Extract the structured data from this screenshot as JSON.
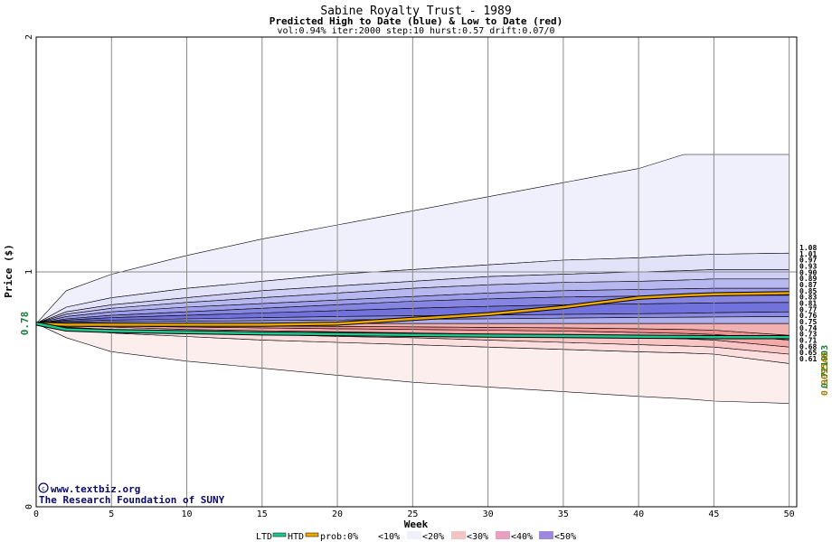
{
  "chart_data": {
    "type": "area",
    "title": "Sabine Royalty Trust - 1989",
    "subtitle": "Predicted High to Date (blue) &  Low to Date (red)",
    "params": "vol:0.94% iter:2000 step:10 hurst:0.57 drift:0.07/0",
    "xlabel": "Week",
    "ylabel": "Price ($)",
    "xlim": [
      0,
      50.5
    ],
    "ylim": [
      0,
      2
    ],
    "x_ticks": [
      "0",
      "5",
      "10",
      "15",
      "20",
      "25",
      "30",
      "35",
      "40",
      "45",
      "50"
    ],
    "y_ticks": [
      "0",
      "1",
      "2"
    ],
    "start_price_label": "0.78",
    "right_side_vertical_values": [
      "0.721903",
      "0.909548"
    ],
    "right_labels": [
      "1.08",
      "1.01",
      "0.97",
      "0.93",
      "0.90",
      "0.89",
      "0.87",
      "0.85",
      "0.83",
      "0.81",
      "0.77",
      "0.76",
      "0.75",
      "0.74",
      "0.73",
      "0.71",
      "0.68",
      "0.65",
      "0.61"
    ],
    "x": [
      0,
      2,
      5,
      10,
      15,
      20,
      25,
      30,
      35,
      40,
      43,
      45,
      50
    ],
    "high_bands": [
      {
        "values": [
          0.78,
          0.92,
          0.99,
          1.07,
          1.14,
          1.2,
          1.26,
          1.32,
          1.38,
          1.44,
          1.5,
          1.5,
          1.5
        ],
        "fill": "#f0f0fc"
      },
      {
        "values": [
          0.78,
          0.85,
          0.89,
          0.93,
          0.96,
          0.99,
          1.01,
          1.03,
          1.05,
          1.06,
          1.07,
          1.075,
          1.08
        ],
        "fill": "#e2e2f8"
      },
      {
        "values": [
          0.78,
          0.83,
          0.86,
          0.89,
          0.92,
          0.94,
          0.96,
          0.98,
          0.99,
          1.0,
          1.005,
          1.01,
          1.01
        ],
        "fill": "#cfcff5"
      },
      {
        "values": [
          0.78,
          0.82,
          0.845,
          0.87,
          0.89,
          0.91,
          0.93,
          0.945,
          0.955,
          0.96,
          0.965,
          0.97,
          0.97
        ],
        "fill": "#b8b8f0"
      },
      {
        "values": [
          0.78,
          0.81,
          0.83,
          0.85,
          0.865,
          0.88,
          0.895,
          0.91,
          0.92,
          0.925,
          0.928,
          0.93,
          0.93
        ],
        "fill": "#9e9eea"
      },
      {
        "values": [
          0.78,
          0.8,
          0.815,
          0.83,
          0.845,
          0.86,
          0.875,
          0.885,
          0.893,
          0.897,
          0.899,
          0.9,
          0.9
        ],
        "fill": "#8686e2"
      },
      {
        "values": [
          0.78,
          0.795,
          0.805,
          0.815,
          0.825,
          0.835,
          0.845,
          0.853,
          0.86,
          0.864,
          0.866,
          0.868,
          0.87
        ],
        "fill": "#7272dc"
      },
      {
        "values": [
          0.78,
          0.79,
          0.795,
          0.8,
          0.805,
          0.81,
          0.813,
          0.816,
          0.819,
          0.822,
          0.824,
          0.826,
          0.83
        ],
        "fill": "#8a8ae2"
      },
      {
        "values": [
          0.78,
          0.785,
          0.788,
          0.79,
          0.792,
          0.795,
          0.798,
          0.8,
          0.803,
          0.806,
          0.807,
          0.808,
          0.81
        ],
        "fill": "#b0b0ee"
      }
    ],
    "low_bands": [
      {
        "values": [
          0.78,
          0.72,
          0.66,
          0.62,
          0.59,
          0.56,
          0.53,
          0.51,
          0.49,
          0.47,
          0.46,
          0.45,
          0.44
        ],
        "fill": "#fdeeee"
      },
      {
        "values": [
          0.78,
          0.755,
          0.74,
          0.725,
          0.71,
          0.7,
          0.69,
          0.68,
          0.67,
          0.66,
          0.655,
          0.65,
          0.61
        ],
        "fill": "#fcdede"
      },
      {
        "values": [
          0.78,
          0.765,
          0.755,
          0.745,
          0.735,
          0.725,
          0.72,
          0.71,
          0.7,
          0.69,
          0.685,
          0.68,
          0.65
        ],
        "fill": "#f9c4c4"
      },
      {
        "values": [
          0.78,
          0.77,
          0.765,
          0.755,
          0.75,
          0.745,
          0.74,
          0.735,
          0.73,
          0.72,
          0.715,
          0.71,
          0.68
        ],
        "fill": "#f4a8a8"
      },
      {
        "values": [
          0.78,
          0.775,
          0.77,
          0.765,
          0.762,
          0.758,
          0.755,
          0.752,
          0.748,
          0.742,
          0.738,
          0.734,
          0.71
        ],
        "fill": "#ee9090"
      },
      {
        "values": [
          0.78,
          0.778,
          0.775,
          0.772,
          0.77,
          0.768,
          0.766,
          0.764,
          0.762,
          0.758,
          0.755,
          0.752,
          0.73
        ],
        "fill": "#f2b0b0"
      }
    ],
    "median_lines": [
      {
        "name": "HTD",
        "values": [
          0.78,
          0.775,
          0.775,
          0.775,
          0.775,
          0.78,
          0.8,
          0.82,
          0.85,
          0.89,
          0.9,
          0.905,
          0.909548
        ],
        "color": "#f0a800"
      },
      {
        "name": "LTD",
        "values": [
          0.78,
          0.755,
          0.748,
          0.743,
          0.738,
          0.735,
          0.732,
          0.729,
          0.727,
          0.724,
          0.723,
          0.722,
          0.721903
        ],
        "color": "#20c890"
      }
    ]
  },
  "credits": {
    "line1": "www.textbiz.org",
    "line2": "The Research Foundation of SUNY"
  },
  "legend": {
    "ltd": "LTD",
    "htd": "HTD",
    "prob": "prob:0%",
    "p10": "<10%",
    "p20": "<20%",
    "p30": "<30%",
    "p40": "<40%",
    "p50": "<50%",
    "ltd_color": "#20c890",
    "htd_color": "#f0a800",
    "swatches": [
      "#ffffff",
      "#f0f0fc",
      "#e0d8f4",
      "#f2c4c4",
      "#e8a0c0",
      "#9e88dc"
    ]
  }
}
